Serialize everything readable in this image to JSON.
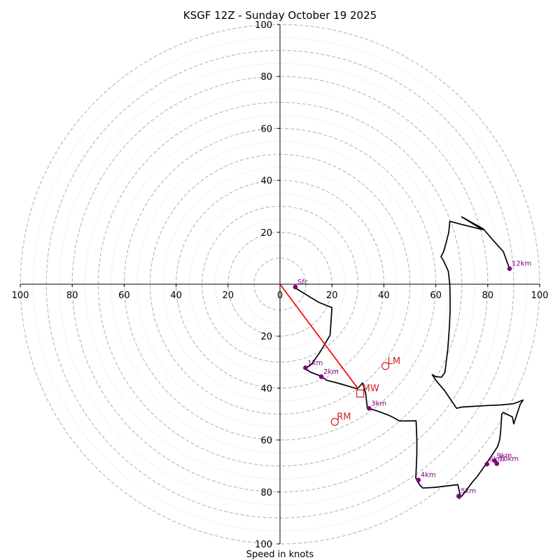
{
  "chart_data": {
    "type": "hodograph",
    "title": "KSGF 12Z - Sunday October 19 2025",
    "xlabel": "Speed in knots",
    "axis_range": [
      -100,
      100
    ],
    "tick_labels": [
      "100",
      "80",
      "60",
      "40",
      "20",
      "0",
      "20",
      "40",
      "60",
      "80",
      "100"
    ],
    "y_tick_labels": [
      "100",
      "80",
      "60",
      "40",
      "20",
      "20",
      "40",
      "60",
      "80",
      "100"
    ],
    "ring_major_knots": [
      10,
      20,
      30,
      40,
      50,
      60,
      70,
      80,
      90,
      100
    ],
    "ring_minor_knots": [
      15,
      25,
      35,
      45,
      55,
      65,
      75,
      85,
      95
    ],
    "colors": {
      "trace": "#000000",
      "height_marker": "#800080",
      "mean_wind": "#cc2222",
      "shear_vector": "#ff0000",
      "ring_major": "#bbbbbb",
      "ring_minor": "#cccccc"
    },
    "trace": [
      [
        5.4,
        -1.1
      ],
      [
        10,
        -4
      ],
      [
        15,
        -7
      ],
      [
        20,
        -9
      ],
      [
        19.3,
        -19.6
      ],
      [
        15.5,
        -26
      ],
      [
        12,
        -31
      ],
      [
        9.6,
        -32.5
      ],
      [
        12,
        -34
      ],
      [
        15.8,
        -35.4
      ],
      [
        18,
        -37
      ],
      [
        22,
        -38
      ],
      [
        29.8,
        -40.3
      ],
      [
        31.8,
        -38
      ],
      [
        32.5,
        -40.5
      ],
      [
        33,
        -42
      ],
      [
        33.6,
        -47.6
      ],
      [
        38,
        -49
      ],
      [
        42,
        -50.5
      ],
      [
        44,
        -51.5
      ],
      [
        46,
        -52.7
      ],
      [
        52.4,
        -52.6
      ],
      [
        52.5,
        -55
      ],
      [
        52.7,
        -60
      ],
      [
        52.7,
        -65
      ],
      [
        52.5,
        -70
      ],
      [
        52.3,
        -74.6
      ],
      [
        53,
        -76
      ],
      [
        54,
        -77.5
      ],
      [
        55,
        -78.5
      ],
      [
        60,
        -78.2
      ],
      [
        65,
        -77.6
      ],
      [
        68.5,
        -77.2
      ],
      [
        69,
        -79.5
      ],
      [
        69.5,
        -81.5
      ],
      [
        69,
        -82.5
      ],
      [
        70.5,
        -81
      ],
      [
        72,
        -79
      ],
      [
        74,
        -76.3
      ],
      [
        76,
        -74
      ],
      [
        78.8,
        -70
      ],
      [
        81.5,
        -66
      ],
      [
        83.8,
        -62.5
      ],
      [
        84.6,
        -59.9
      ],
      [
        85,
        -56
      ],
      [
        85.4,
        -50
      ],
      [
        86,
        -49.4
      ],
      [
        89.5,
        -51.1
      ],
      [
        90,
        -53.8
      ],
      [
        92.5,
        -46.2
      ],
      [
        93.6,
        -44.6
      ],
      [
        90,
        -46
      ],
      [
        85,
        -46.5
      ],
      [
        80,
        -46.7
      ],
      [
        75,
        -47
      ],
      [
        70,
        -47.3
      ],
      [
        68,
        -47.8
      ],
      [
        63.4,
        -41
      ],
      [
        60,
        -37
      ],
      [
        58.6,
        -34.8
      ],
      [
        60,
        -35.6
      ],
      [
        62.2,
        -35.8
      ],
      [
        63.5,
        -34
      ],
      [
        64,
        -30
      ],
      [
        64.6,
        -25
      ],
      [
        65,
        -20
      ],
      [
        65.3,
        -15
      ],
      [
        65.5,
        -10
      ],
      [
        65.5,
        -5
      ],
      [
        65.4,
        0
      ],
      [
        64.8,
        5
      ],
      [
        63,
        9
      ],
      [
        62,
        10.6
      ],
      [
        63,
        12.5
      ],
      [
        64,
        16
      ],
      [
        65,
        20
      ],
      [
        65.4,
        24.2
      ],
      [
        70,
        23
      ],
      [
        78,
        21
      ],
      [
        75,
        22.8
      ],
      [
        70,
        25.9
      ],
      [
        78.3,
        21.3
      ],
      [
        82,
        17
      ],
      [
        86,
        12.5
      ],
      [
        88.3,
        6.2
      ]
    ],
    "height_markers": [
      {
        "label": "Sfc",
        "u": 5.9,
        "v": -1.1
      },
      {
        "label": "1km",
        "u": 9.8,
        "v": -32.2
      },
      {
        "label": "2km",
        "u": 15.9,
        "v": -35.6
      },
      {
        "label": "3km",
        "u": 34.3,
        "v": -47.8
      },
      {
        "label": "4km",
        "u": 53.3,
        "v": -75.4
      },
      {
        "label": "5km",
        "u": 68.8,
        "v": -81.6
      },
      {
        "label": "6km",
        "u": 79.7,
        "v": -69.3
      },
      {
        "label": "9km",
        "u": 82.6,
        "v": -67.9
      },
      {
        "label": "10km",
        "u": 83.5,
        "v": -69.1
      },
      {
        "label": "12km",
        "u": 88.4,
        "v": 6
      }
    ],
    "storm_motion": [
      {
        "label": "LM",
        "u": 40.6,
        "v": -31.5,
        "symbol": "circle"
      },
      {
        "label": "MW",
        "u": 30.9,
        "v": -42.1,
        "symbol": "square"
      },
      {
        "label": "RM",
        "u": 21.1,
        "v": -53,
        "symbol": "circle"
      }
    ],
    "shear_vector": {
      "u0": 0,
      "v0": 0,
      "u1": 30.1,
      "v1": -40.3
    }
  }
}
